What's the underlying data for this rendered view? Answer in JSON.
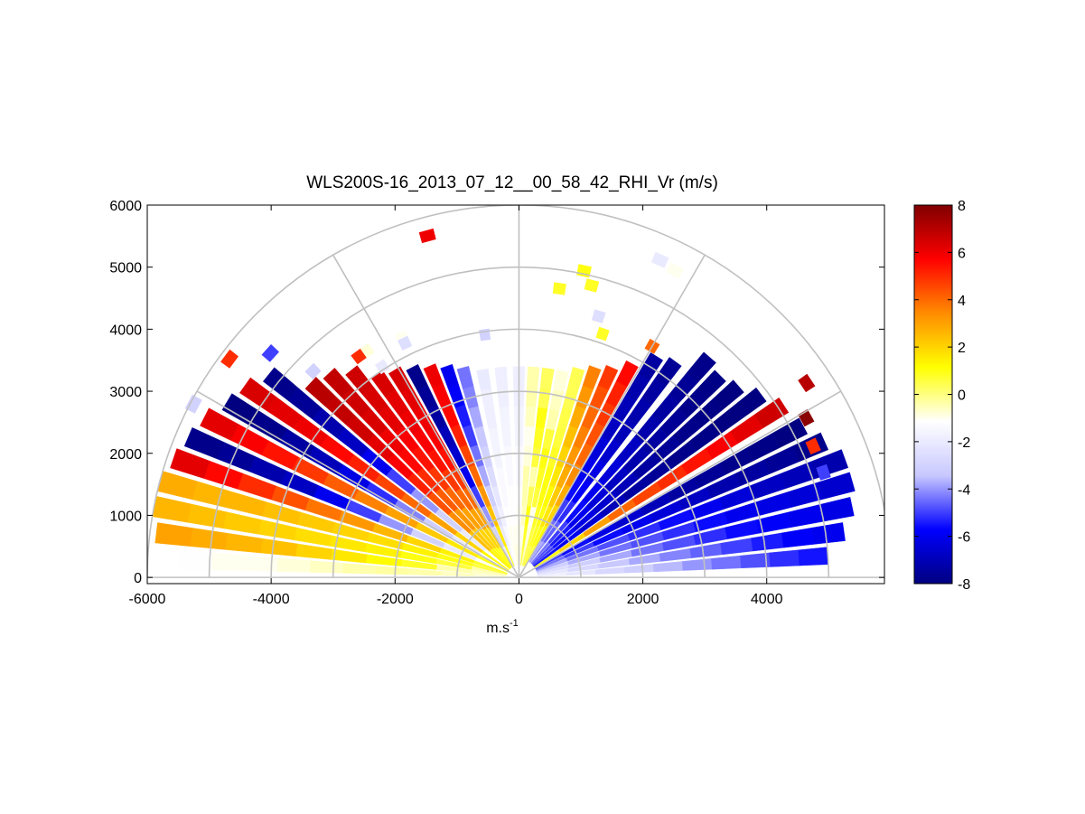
{
  "chart_data": {
    "type": "heatmap",
    "subtype": "polar-rhi",
    "title": "WLS200S-16_2013_07_12__00_58_42_RHI_Vr (m/s)",
    "xlabel": "m.s",
    "xlabel_sup": "-1",
    "ylabel": "",
    "xlim": [
      -6000,
      5900
    ],
    "ylim": [
      -100,
      6000
    ],
    "x_ticks": [
      -6000,
      -4000,
      -2000,
      0,
      2000,
      4000
    ],
    "x_tick_labels": [
      "-6000",
      "-4000",
      "-2000",
      "0",
      "2000",
      "4000"
    ],
    "y_ticks": [
      0,
      1000,
      2000,
      3000,
      4000,
      5000,
      6000
    ],
    "y_tick_labels": [
      "0",
      "1000",
      "2000",
      "3000",
      "4000",
      "5000",
      "6000"
    ],
    "polar_grid": {
      "range_rings": [
        1000,
        2000,
        3000,
        4000,
        5000,
        6000
      ],
      "spokes_deg": [
        0,
        30,
        60,
        90,
        120,
        150,
        180
      ]
    },
    "colorbar": {
      "min": -8,
      "max": 8,
      "ticks": [
        8,
        6,
        4,
        2,
        0,
        -2,
        -4,
        -6,
        -8
      ],
      "tick_labels": [
        "8",
        "6",
        "4",
        "2",
        "0",
        "-2",
        "-4",
        "-6",
        "-8"
      ],
      "colors": [
        "#000080",
        "#0000ff",
        "#c8c8ff",
        "#ffffff",
        "#ffff00",
        "#ff8c00",
        "#ff0000",
        "#800000"
      ]
    },
    "beams": [
      {
        "elev": 4,
        "r0": 300,
        "r1": 5000,
        "v": [
          -1.8,
          -2.2,
          -2.8,
          -3.2,
          -3.6,
          -4.0,
          -4.4,
          -4.8,
          -5.2,
          -5.5
        ]
      },
      {
        "elev": 8,
        "r0": 300,
        "r1": 5300,
        "v": [
          -2.2,
          -2.8,
          -3.4,
          -3.8,
          -4.2,
          -4.6,
          -5.0,
          -5.4,
          -5.8,
          -6.0
        ]
      },
      {
        "elev": 12,
        "r0": 300,
        "r1": 5500,
        "v": [
          -2.6,
          -3.2,
          -3.8,
          -4.4,
          -4.8,
          -5.2,
          -5.6,
          -5.8,
          -6.0,
          -6.2
        ]
      },
      {
        "elev": 16,
        "r0": 300,
        "r1": 5600,
        "v": [
          -3.2,
          -3.8,
          -4.4,
          -4.8,
          -5.2,
          -5.6,
          -6.0,
          -6.2,
          -6.4,
          -6.6
        ]
      },
      {
        "elev": 20,
        "r0": 300,
        "r1": 5600,
        "v": [
          -3.8,
          -4.4,
          -4.8,
          -5.2,
          -5.6,
          -6.0,
          -6.4,
          -6.8,
          -7.0,
          -7.2
        ]
      },
      {
        "elev": 24,
        "r0": 300,
        "r1": 5400,
        "v": [
          -4.4,
          -5.0,
          -5.6,
          -6.0,
          -6.4,
          -6.8,
          -7.2,
          -7.4,
          -7.6,
          -7.8
        ]
      },
      {
        "elev": 28,
        "r0": 300,
        "r1": 5200,
        "v": [
          -5.0,
          -5.6,
          -6.2,
          -6.6,
          -7.0,
          -7.4,
          -7.6,
          -7.8,
          -7.9,
          -8.0
        ]
      },
      {
        "elev": 33,
        "r0": 300,
        "r1": 5100,
        "v": [
          1.0,
          2.0,
          3.0,
          4.0,
          4.6,
          5.0,
          5.4,
          5.8,
          6.2,
          6.6
        ]
      },
      {
        "elev": 37,
        "r0": 300,
        "r1": 4900,
        "v": [
          -5.5,
          -6.0,
          -6.5,
          -7.0,
          -7.4,
          -7.6,
          -7.8,
          -7.9,
          -8.0,
          -8.0
        ]
      },
      {
        "elev": 41,
        "r0": 300,
        "r1": 4700,
        "v": [
          -5.0,
          -5.6,
          -6.2,
          -6.6,
          -7.0,
          -7.4,
          -7.6,
          -7.8,
          -7.9,
          -8.0
        ]
      },
      {
        "elev": 45,
        "r0": 300,
        "r1": 4600,
        "v": [
          -4.8,
          -5.4,
          -6.0,
          -6.4,
          -6.8,
          -7.2,
          -7.4,
          -7.6,
          -7.8,
          -7.9
        ]
      },
      {
        "elev": 49,
        "r0": 300,
        "r1": 4700,
        "v": [
          -4.4,
          -5.0,
          -5.6,
          -6.0,
          -6.4,
          -6.8,
          -7.2,
          -7.4,
          -7.6,
          -7.8
        ]
      },
      {
        "elev": 54,
        "r0": 300,
        "r1": 4300,
        "v": [
          -4.0,
          -4.6,
          -5.2,
          -5.8,
          -6.2,
          -6.6,
          -7.0,
          -7.2,
          -7.4,
          -7.6
        ]
      },
      {
        "elev": 58,
        "r0": 300,
        "r1": 4200,
        "v": [
          -3.8,
          -4.4,
          -5.0,
          -5.6,
          -6.0,
          -6.4,
          -6.8,
          -7.0,
          -7.2,
          -7.4
        ]
      },
      {
        "elev": 62,
        "r0": 200,
        "r1": 3900,
        "v": [
          0.6,
          1.2,
          2.0,
          2.8,
          3.4,
          4.0,
          4.4,
          4.8,
          5.2,
          5.6
        ]
      },
      {
        "elev": 66,
        "r0": 200,
        "r1": 3700,
        "v": [
          0.6,
          1.0,
          1.6,
          2.2,
          2.8,
          3.2,
          3.6,
          4.0,
          4.4,
          4.8
        ]
      },
      {
        "elev": 70,
        "r0": 200,
        "r1": 3600,
        "v": [
          0.5,
          0.8,
          1.0,
          1.2,
          1.6,
          2.0,
          2.4,
          2.8,
          3.2,
          3.6
        ]
      },
      {
        "elev": 74,
        "r0": 200,
        "r1": 3500,
        "v": [
          0.4,
          0.6,
          0.8,
          1.0,
          1.0,
          0.8,
          0.6,
          0.5,
          0.4,
          0.4
        ]
      },
      {
        "elev": 78,
        "r0": 200,
        "r1": 3400,
        "v": [
          -0.6,
          -0.8,
          -1.0,
          0.6,
          0.8,
          1.0,
          0.6,
          -0.4,
          -0.6,
          -0.8
        ]
      },
      {
        "elev": 82,
        "r0": 200,
        "r1": 3400,
        "v": [
          0.6,
          0.8,
          1.0,
          0.4,
          -0.4,
          0.6,
          0.8,
          1.0,
          0.4,
          0.3
        ]
      },
      {
        "elev": 86,
        "r0": 200,
        "r1": 3400,
        "v": [
          -0.8,
          -1.0,
          -0.6,
          -0.4,
          -0.4,
          -0.8,
          -1.0,
          -0.6,
          -0.4,
          -0.4
        ]
      },
      {
        "elev": 90,
        "r0": 200,
        "r1": 3400,
        "v": [
          -0.6,
          -0.8,
          -1.0,
          -1.2,
          -1.4,
          -1.4,
          -1.6,
          -1.6,
          -1.8,
          -1.8
        ]
      },
      {
        "elev": 95,
        "r0": 200,
        "r1": 3400,
        "v": [
          -0.8,
          -1.0,
          -1.2,
          -1.2,
          -1.4,
          -1.4,
          -1.6,
          -1.6,
          -1.8,
          -1.8
        ]
      },
      {
        "elev": 100,
        "r0": 200,
        "r1": 3400,
        "v": [
          -1.0,
          -1.0,
          -1.2,
          -1.4,
          -1.4,
          -1.6,
          -1.6,
          -1.8,
          -1.8,
          -2.0
        ]
      },
      {
        "elev": 105,
        "r0": 200,
        "r1": 3500,
        "v": [
          -1.2,
          -1.4,
          -1.8,
          -2.2,
          -2.6,
          -3.0,
          -3.4,
          -3.8,
          -4.2,
          -4.4
        ]
      },
      {
        "elev": 109,
        "r0": 200,
        "r1": 3600,
        "v": [
          -1.6,
          -2.0,
          -2.6,
          -3.2,
          -3.8,
          -4.4,
          -5.0,
          -5.4,
          -5.8,
          -6.0
        ]
      },
      {
        "elev": 113,
        "r0": 200,
        "r1": 3700,
        "v": [
          0.8,
          1.6,
          2.4,
          3.2,
          4.0,
          4.6,
          5.2,
          5.6,
          5.8,
          6.0
        ]
      },
      {
        "elev": 117,
        "r0": 200,
        "r1": 3800,
        "v": [
          -2.0,
          -3.0,
          -4.0,
          -5.0,
          -6.0,
          -6.6,
          -7.0,
          -7.4,
          -7.6,
          -7.8
        ]
      },
      {
        "elev": 121,
        "r0": 200,
        "r1": 3900,
        "v": [
          1.0,
          2.0,
          3.0,
          4.0,
          4.8,
          5.4,
          5.8,
          6.0,
          6.2,
          6.4
        ]
      },
      {
        "elev": 125,
        "r0": 200,
        "r1": 4000,
        "v": [
          1.0,
          2.0,
          3.0,
          4.0,
          4.8,
          5.4,
          5.8,
          6.0,
          6.2,
          6.4
        ]
      },
      {
        "elev": 129,
        "r0": 200,
        "r1": 4300,
        "v": [
          1.0,
          2.0,
          3.0,
          4.0,
          4.8,
          5.4,
          5.8,
          6.2,
          6.4,
          6.6
        ]
      },
      {
        "elev": 133,
        "r0": 200,
        "r1": 4500,
        "v": [
          1.2,
          2.2,
          3.2,
          4.2,
          5.0,
          5.6,
          6.0,
          6.4,
          6.6,
          6.8
        ]
      },
      {
        "elev": 137,
        "r0": 200,
        "r1": 4600,
        "v": [
          1.4,
          2.4,
          3.4,
          4.4,
          5.2,
          5.8,
          6.2,
          6.6,
          6.8,
          7.0
        ]
      },
      {
        "elev": 141,
        "r0": 200,
        "r1": 5200,
        "v": [
          -1.0,
          -2.0,
          -3.0,
          -4.0,
          -5.0,
          -6.0,
          -6.8,
          -7.2,
          -7.6,
          -7.8
        ]
      },
      {
        "elev": 145,
        "r0": 200,
        "r1": 5400,
        "v": [
          1.2,
          2.0,
          3.0,
          4.0,
          4.6,
          5.2,
          5.6,
          6.0,
          6.2,
          6.4
        ]
      },
      {
        "elev": 149,
        "r0": 200,
        "r1": 5500,
        "v": [
          -1.2,
          -2.2,
          -3.2,
          -4.2,
          -5.2,
          -6.2,
          -7.0,
          -7.4,
          -7.8,
          -8.0
        ]
      },
      {
        "elev": 153,
        "r0": 200,
        "r1": 5700,
        "v": [
          1.0,
          1.6,
          2.2,
          3.0,
          3.6,
          4.2,
          4.8,
          5.4,
          5.8,
          6.2
        ]
      },
      {
        "elev": 157,
        "r0": 200,
        "r1": 5800,
        "v": [
          -1.0,
          -2.0,
          -3.0,
          -4.0,
          -5.0,
          -6.0,
          -6.8,
          -7.2,
          -7.6,
          -7.8
        ]
      },
      {
        "elev": 161,
        "r0": 200,
        "r1": 5900,
        "v": [
          0.8,
          1.4,
          2.0,
          2.6,
          3.2,
          3.8,
          4.4,
          5.0,
          5.6,
          6.2
        ]
      },
      {
        "elev": 165,
        "r0": 200,
        "r1": 6000,
        "v": [
          0.6,
          1.0,
          1.4,
          1.8,
          2.0,
          2.2,
          2.4,
          2.6,
          2.6,
          2.8
        ]
      },
      {
        "elev": 169,
        "r0": 200,
        "r1": 6000,
        "v": [
          -0.4,
          0.6,
          1.0,
          1.4,
          1.6,
          1.8,
          2.0,
          2.2,
          2.4,
          2.6
        ]
      },
      {
        "elev": 173,
        "r0": 200,
        "r1": 5900,
        "v": [
          -0.6,
          -0.4,
          0.8,
          1.2,
          1.6,
          2.0,
          2.4,
          2.6,
          2.8,
          3.0
        ]
      },
      {
        "elev": 177,
        "r0": 200,
        "r1": 5500,
        "v": [
          -0.8,
          -0.6,
          -0.4,
          -0.3,
          -0.4,
          -0.6,
          -0.8,
          -1.0,
          -1.0,
          -1.2
        ]
      }
    ],
    "scattered_gates": [
      {
        "elev": 105,
        "r": 5700,
        "v": 6.0
      },
      {
        "elev": 66,
        "r": 5600,
        "v": -2.0
      },
      {
        "elev": 63,
        "r": 5550,
        "v": -1.0
      },
      {
        "elev": 78,
        "r": 5050,
        "v": 1.0
      },
      {
        "elev": 76,
        "r": 4850,
        "v": 0.8
      },
      {
        "elev": 123,
        "r": 4050,
        "v": -2.0
      },
      {
        "elev": 98,
        "r": 3950,
        "v": -3.0
      },
      {
        "elev": 71,
        "r": 4150,
        "v": 0.8
      },
      {
        "elev": 60,
        "r": 4300,
        "v": 4.0
      },
      {
        "elev": 73,
        "r": 4400,
        "v": -2.5
      },
      {
        "elev": 82,
        "r": 4700,
        "v": 0.8
      },
      {
        "elev": 124,
        "r": 4400,
        "v": -0.8
      },
      {
        "elev": 116,
        "r": 4300,
        "v": -1.0
      },
      {
        "elev": 116,
        "r": 4200,
        "v": -2.5
      },
      {
        "elev": 126,
        "r": 4400,
        "v": 5.0
      },
      {
        "elev": 135,
        "r": 4700,
        "v": -3.0
      },
      {
        "elev": 138,
        "r": 5400,
        "v": -5.0
      },
      {
        "elev": 143,
        "r": 5850,
        "v": 5.0
      },
      {
        "elev": 34,
        "r": 5600,
        "v": 7.0
      },
      {
        "elev": 24,
        "r": 5200,
        "v": 5.0
      },
      {
        "elev": 29,
        "r": 5300,
        "v": 7.8
      },
      {
        "elev": 19,
        "r": 5200,
        "v": -5.0
      },
      {
        "elev": 152,
        "r": 5950,
        "v": -3.0
      }
    ]
  }
}
